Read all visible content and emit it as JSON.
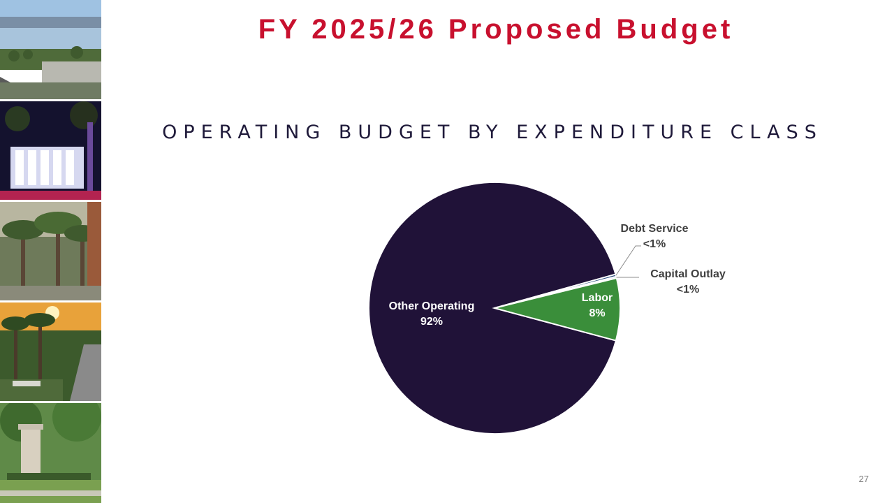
{
  "slide": {
    "title": "FY 2025/26 Proposed Budget",
    "subtitle": "OPERATING BUDGET BY EXPENDITURE CLASS",
    "page_number": "27"
  },
  "colors": {
    "title": "#c8102e",
    "subtitle": "#1f1a3a",
    "other_operating": "#201238",
    "labor": "#3a8e3a",
    "debt_service": "#2f4f7f",
    "capital_outlay": "#8ab4e0"
  },
  "chart_data": {
    "type": "pie",
    "title": "OPERATING BUDGET BY EXPENDITURE CLASS",
    "slices": [
      {
        "label": "Other Operating",
        "value": 91.5,
        "display": "92%"
      },
      {
        "label": "Debt Service",
        "value": 0.3,
        "display": "<1%"
      },
      {
        "label": "Capital Outlay",
        "value": 0.2,
        "display": "<1%"
      },
      {
        "label": "Labor",
        "value": 8.0,
        "display": "8%"
      }
    ]
  }
}
